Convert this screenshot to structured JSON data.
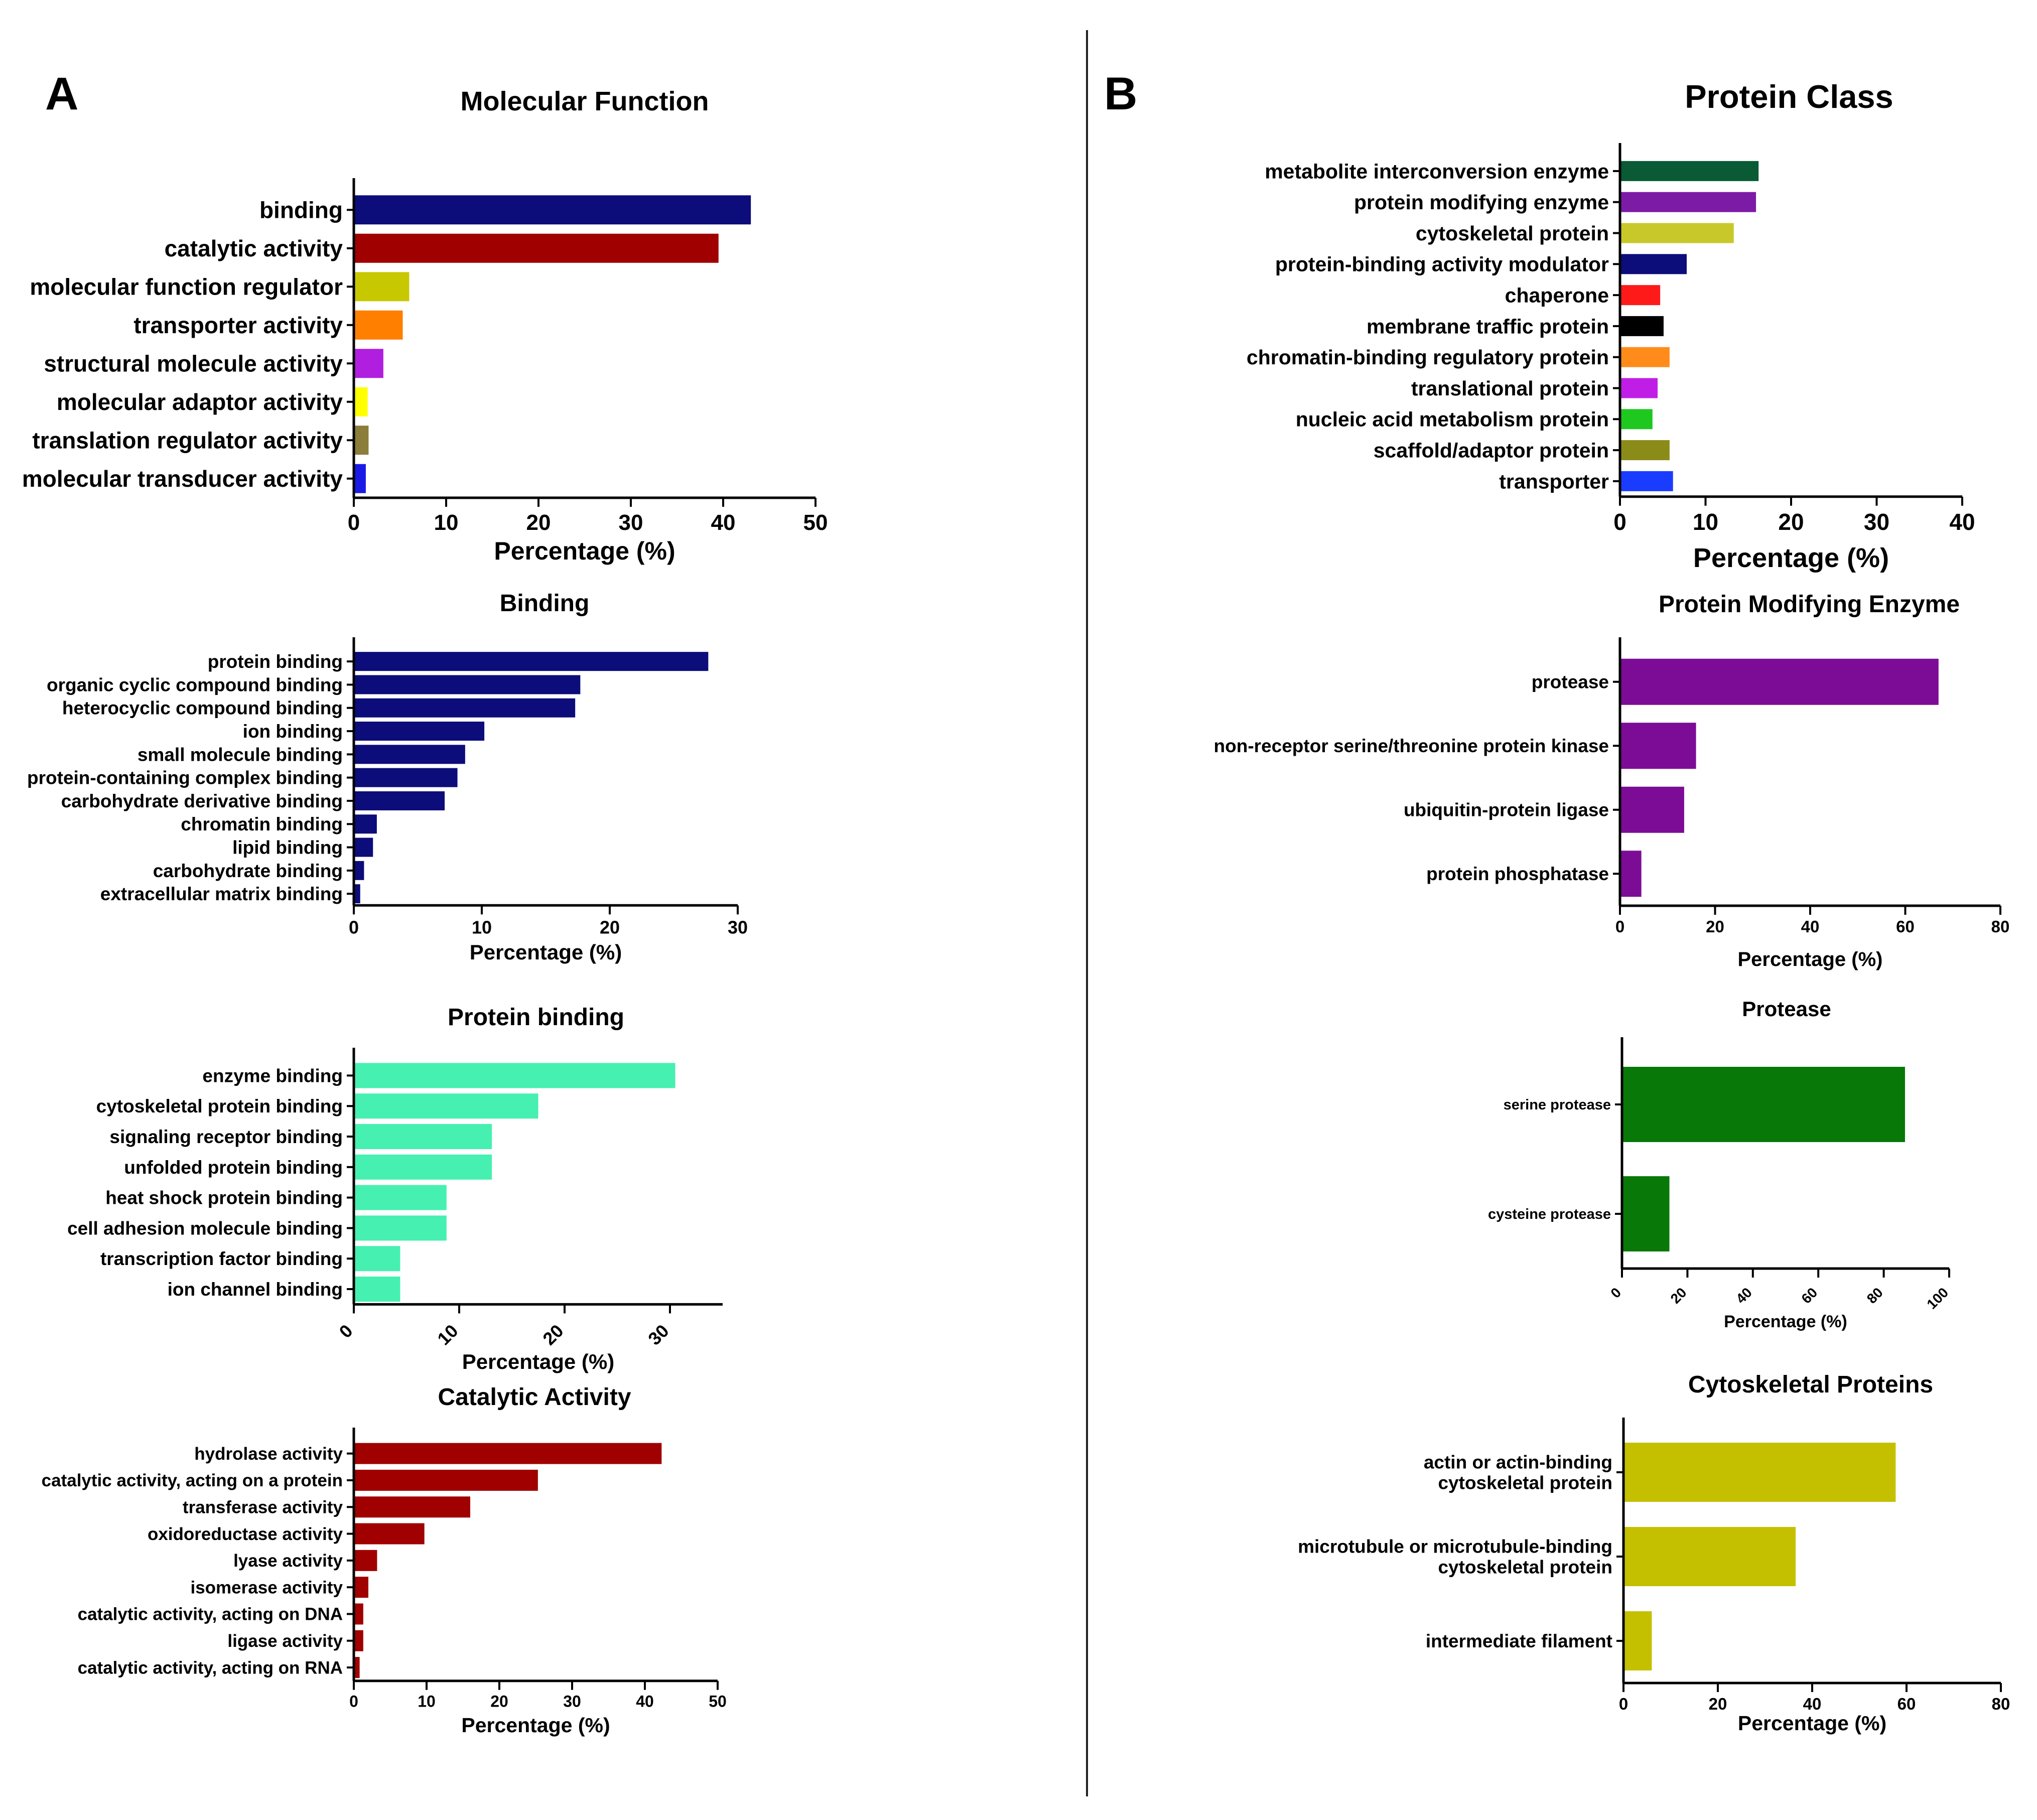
{
  "panels": {
    "A": "A",
    "B": "B"
  },
  "chart_data": [
    {
      "id": "mf",
      "type": "bar",
      "orientation": "horizontal",
      "title": "Molecular Function",
      "xlabel": "Percentage (%)",
      "ylabel": "",
      "xlim": [
        0,
        50
      ],
      "ticks": [
        0,
        10,
        20,
        30,
        40,
        50
      ],
      "categories": [
        "binding",
        "catalytic activity",
        "molecular function regulator",
        "transporter activity",
        "structural molecule activity",
        "molecular adaptor activity",
        "translation regulator activity",
        "molecular transducer activity"
      ],
      "values": [
        43,
        39.5,
        6,
        5.3,
        3.2,
        1.5,
        1.6,
        1.3
      ],
      "colors": [
        "#0c0c7a",
        "#a00000",
        "#c8c800",
        "#ff7f00",
        "#b01ee0",
        "#ffff00",
        "#8b7d3a",
        "#1a1ae6"
      ],
      "grid": false,
      "legend": "none"
    },
    {
      "id": "bind",
      "type": "bar",
      "orientation": "horizontal",
      "title": "Binding",
      "xlabel": "Percentage (%)",
      "ylabel": "",
      "xlim": [
        0,
        30
      ],
      "ticks": [
        0,
        10,
        20,
        30
      ],
      "categories": [
        "protein binding",
        "organic cyclic compound binding",
        "heterocyclic compound binding",
        "ion binding",
        "small molecule binding",
        "protein-containing complex binding",
        "carbohydrate derivative binding",
        "chromatin binding",
        "lipid binding",
        "carbohydrate binding",
        "extracellular matrix binding"
      ],
      "values": [
        27.7,
        17.7,
        17.3,
        10.2,
        8.7,
        8.1,
        7.1,
        1.8,
        1.5,
        0.8,
        0.5
      ],
      "colors": [
        "#0c0c7a"
      ],
      "grid": false,
      "legend": "none"
    },
    {
      "id": "pbind",
      "type": "bar",
      "orientation": "horizontal",
      "title": "Protein binding",
      "xlabel": "Percentage (%)",
      "ylabel": "",
      "xlim": [
        0,
        35
      ],
      "ticks": [
        0,
        10,
        20,
        30
      ],
      "rotate_ticks": true,
      "categories": [
        "enzyme binding",
        "cytoskeletal protein binding",
        "signaling receptor binding",
        "unfolded protein binding",
        "heat shock protein binding",
        "cell adhesion molecule binding",
        "transcription factor binding",
        "ion channel binding"
      ],
      "values": [
        30.5,
        17.5,
        13.1,
        13.1,
        8.8,
        8.8,
        4.4,
        4.4
      ],
      "colors": [
        "#45f0b0"
      ],
      "grid": false,
      "legend": "none"
    },
    {
      "id": "cat",
      "type": "bar",
      "orientation": "horizontal",
      "title": "Catalytic Activity",
      "xlabel": "Percentage (%)",
      "ylabel": "",
      "xlim": [
        0,
        50
      ],
      "ticks": [
        0,
        10,
        20,
        30,
        40,
        50
      ],
      "categories": [
        "hydrolase activity",
        "catalytic activity, acting on a protein",
        "transferase activity",
        "oxidoreductase activity",
        "lyase activity",
        "isomerase activity",
        "catalytic activity, acting on DNA",
        "ligase activity",
        "catalytic activity, acting on RNA"
      ],
      "values": [
        42.3,
        25.3,
        16,
        9.7,
        3.2,
        2,
        1.3,
        1.3,
        0.8
      ],
      "colors": [
        "#a00000"
      ],
      "grid": false,
      "legend": "none"
    },
    {
      "id": "pc",
      "type": "bar",
      "orientation": "horizontal",
      "title": "Protein Class",
      "xlabel": "Percentage (%)",
      "ylabel": "",
      "xlim": [
        0,
        40
      ],
      "ticks": [
        0,
        10,
        20,
        30,
        40
      ],
      "categories": [
        "metabolite interconversion enzyme",
        "protein modifying enzyme",
        "cytoskeletal protein",
        "protein-binding activity modulator",
        "chaperone",
        "membrane traffic protein",
        "chromatin-binding regulatory protein",
        "translational protein",
        "nucleic acid metabolism protein",
        "scaffold/adaptor protein",
        "transporter"
      ],
      "values": [
        16.2,
        15.9,
        13.3,
        7.8,
        4.7,
        5.1,
        5.8,
        4.4,
        3.8,
        5.8,
        6.2
      ],
      "colors": [
        "#0a5a36",
        "#7c1ba6",
        "#c8c82a",
        "#0c0c7a",
        "#ff1a1a",
        "#000000",
        "#ff8c1a",
        "#c01ee6",
        "#1ec81e",
        "#8b8b1a",
        "#1a3cff"
      ],
      "grid": false,
      "legend": "none"
    },
    {
      "id": "pme",
      "type": "bar",
      "orientation": "horizontal",
      "title": "Protein Modifying Enzyme",
      "xlabel": "Percentage (%)",
      "ylabel": "",
      "xlim": [
        0,
        80
      ],
      "ticks": [
        0,
        20,
        40,
        60,
        80
      ],
      "categories": [
        "protease",
        "non-receptor serine/threonine protein kinase",
        "ubiquitin-protein ligase",
        "protein phosphatase"
      ],
      "values": [
        67,
        16,
        13.5,
        4.5
      ],
      "colors": [
        "#7c0c96"
      ],
      "grid": false,
      "legend": "none"
    },
    {
      "id": "prot",
      "type": "bar",
      "orientation": "horizontal",
      "title": "Protease",
      "xlabel": "Percentage (%)",
      "ylabel": "",
      "xlim": [
        0,
        100
      ],
      "ticks": [
        0,
        20,
        40,
        60,
        80,
        100
      ],
      "rotate_ticks": true,
      "categories": [
        "serine protease",
        "cysteine protease"
      ],
      "values": [
        86.5,
        14.5
      ],
      "colors": [
        "#087808"
      ],
      "grid": false,
      "legend": "none"
    },
    {
      "id": "cyto",
      "type": "bar",
      "orientation": "horizontal",
      "title": "Cytoskeletal Proteins",
      "xlabel": "Percentage (%)",
      "ylabel": "",
      "xlim": [
        0,
        80
      ],
      "ticks": [
        0,
        20,
        40,
        60,
        80
      ],
      "categories": [
        [
          "actin or actin-binding",
          "cytoskeletal protein"
        ],
        [
          "microtubule or microtubule-binding",
          "cytoskeletal protein"
        ],
        [
          "intermediate filament"
        ]
      ],
      "values": [
        57.7,
        36.5,
        6
      ],
      "colors": [
        "#c4c000"
      ],
      "grid": false,
      "legend": "none"
    }
  ]
}
